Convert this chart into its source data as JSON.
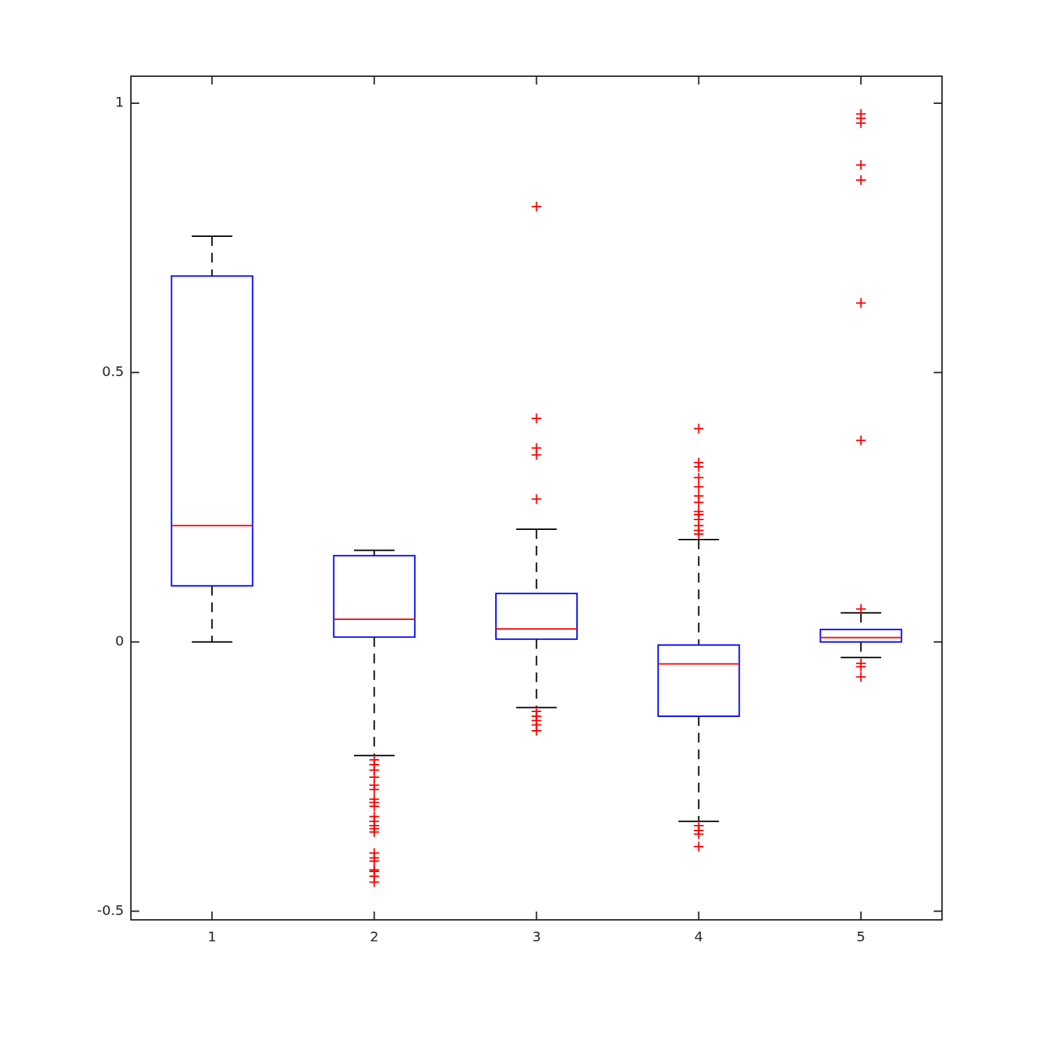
{
  "chart_data": {
    "type": "box",
    "categories": [
      "1",
      "2",
      "3",
      "4",
      "5"
    ],
    "color": "#0000ff",
    "marker": "cross",
    "grid": false,
    "legend": false,
    "ylim": [
      -0.516,
      1.05
    ],
    "yticks": [
      -0.5,
      0,
      0.5,
      1
    ],
    "boxes": [
      {
        "low": 0,
        "q1": 0.104,
        "median": 0.216,
        "q3": 0.679,
        "high": 0.753
      },
      {
        "low": -0.211,
        "q1": 0.009,
        "median": 0.042,
        "q3": 0.16,
        "high": 0.17,
        "outliers": [
          -0.219,
          -0.228,
          -0.238,
          -0.251,
          -0.266,
          -0.274,
          -0.292,
          -0.298,
          -0.305,
          -0.324,
          -0.333,
          -0.341,
          -0.347,
          -0.353,
          -0.392,
          -0.401,
          -0.407,
          -0.423,
          -0.426,
          -0.435,
          -0.446
        ]
      },
      {
        "low": -0.122,
        "q1": 0.005,
        "median": 0.024,
        "q3": 0.09,
        "high": 0.209,
        "outliers": [
          0.808,
          0.415,
          0.36,
          0.347,
          0.265,
          -0.129,
          -0.138,
          -0.146,
          -0.154,
          -0.165
        ]
      },
      {
        "low": -0.333,
        "q1": -0.138,
        "median": -0.041,
        "q3": -0.006,
        "high": 0.19,
        "outliers": [
          0.396,
          0.333,
          0.325,
          0.305,
          0.288,
          0.271,
          0.259,
          0.242,
          0.236,
          0.227,
          0.216,
          0.207,
          0.2,
          -0.341,
          -0.35,
          -0.357,
          -0.38
        ]
      },
      {
        "low": -0.029,
        "q1": 0,
        "median": 0.008,
        "q3": 0.023,
        "high": 0.054,
        "outliers": [
          0.98,
          0.972,
          0.963,
          0.885,
          0.857,
          0.629,
          0.374,
          0.061,
          -0.04,
          -0.046,
          -0.065
        ]
      }
    ]
  }
}
